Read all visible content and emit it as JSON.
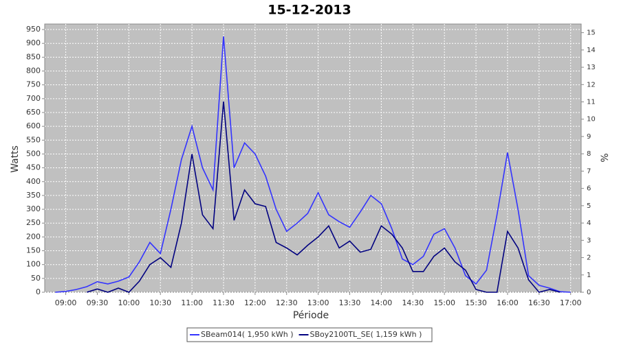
{
  "chart_data": {
    "type": "line",
    "title": "15-12-2013",
    "x_label": "Période",
    "y_label": "Watts",
    "y2_label": "%",
    "categories": [
      null,
      null,
      "09:00",
      null,
      null,
      "09:30",
      null,
      null,
      "10:00",
      null,
      null,
      "10:30",
      null,
      null,
      "11:00",
      null,
      null,
      "11:30",
      null,
      null,
      "12:00",
      null,
      null,
      "12:30",
      null,
      null,
      "13:00",
      null,
      null,
      "13:30",
      null,
      null,
      "14:00",
      null,
      null,
      "14:30",
      null,
      null,
      "15:00",
      null,
      null,
      "15:30",
      null,
      null,
      "16:00",
      null,
      null,
      "16:30",
      null,
      null,
      "17:00",
      null
    ],
    "series": [
      {
        "name": "SBeam014( 1,950 kWh )",
        "color": "#3333ff",
        "values": [
          null,
          0,
          3,
          10,
          20,
          38,
          30,
          40,
          55,
          110,
          180,
          140,
          300,
          480,
          600,
          450,
          370,
          925,
          450,
          540,
          500,
          420,
          300,
          220,
          250,
          285,
          360,
          280,
          255,
          235,
          290,
          350,
          320,
          230,
          120,
          100,
          130,
          210,
          230,
          160,
          60,
          30,
          80,
          280,
          505,
          300,
          60,
          25,
          15,
          2,
          0,
          null
        ]
      },
      {
        "name": "SBoy2100TL_SE( 1,159 kWh )",
        "color": "#000080",
        "values": [
          null,
          null,
          null,
          null,
          0,
          12,
          0,
          15,
          0,
          40,
          100,
          125,
          90,
          250,
          500,
          280,
          230,
          690,
          260,
          370,
          320,
          310,
          180,
          160,
          135,
          170,
          200,
          240,
          160,
          185,
          145,
          155,
          240,
          210,
          160,
          75,
          75,
          130,
          160,
          110,
          80,
          10,
          0,
          0,
          220,
          160,
          45,
          0,
          10,
          0,
          null,
          null
        ]
      }
    ],
    "ylim": [
      0,
      970
    ],
    "yticks": [
      0,
      50,
      100,
      150,
      200,
      250,
      300,
      350,
      400,
      450,
      500,
      550,
      600,
      650,
      700,
      750,
      800,
      850,
      900,
      950
    ],
    "y2lim": [
      0,
      15.5
    ],
    "y2ticks": [
      0,
      1,
      2,
      3,
      4,
      5,
      6,
      7,
      8,
      9,
      10,
      11,
      12,
      13,
      14,
      15
    ],
    "grid": true,
    "background": "#c0c0c0",
    "legend": "bottom"
  }
}
